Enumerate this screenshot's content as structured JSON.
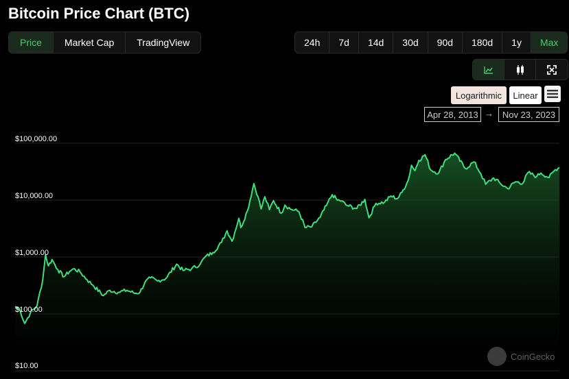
{
  "header": {
    "title": "Bitcoin Price Chart (BTC)"
  },
  "tabs": [
    {
      "label": "Price",
      "active": true
    },
    {
      "label": "Market Cap",
      "active": false
    },
    {
      "label": "TradingView",
      "active": false
    }
  ],
  "ranges": [
    {
      "label": "24h",
      "active": false
    },
    {
      "label": "7d",
      "active": false
    },
    {
      "label": "14d",
      "active": false
    },
    {
      "label": "30d",
      "active": false
    },
    {
      "label": "90d",
      "active": false
    },
    {
      "label": "180d",
      "active": false
    },
    {
      "label": "1y",
      "active": false
    },
    {
      "label": "Max",
      "active": true
    }
  ],
  "view_buttons": [
    {
      "icon": "line-chart-icon",
      "active": true
    },
    {
      "icon": "candlestick-icon",
      "active": false
    },
    {
      "icon": "fullscreen-icon",
      "active": false
    }
  ],
  "scale": {
    "log_label": "Logarithmic",
    "linear_label": "Linear",
    "selected": "Logarithmic"
  },
  "date_range": {
    "from": "Apr 28, 2013",
    "arrow": "→",
    "to": "Nov 23, 2023"
  },
  "watermark": {
    "text": "CoinGecko"
  },
  "colors": {
    "accent": "#4bcc6a",
    "line": "#3ee07e",
    "background": "#000000"
  },
  "chart_data": {
    "type": "area",
    "title": "Bitcoin Price Chart (BTC)",
    "y_scale": "log",
    "ylim": [
      10,
      100000
    ],
    "x_range": [
      "2013-04-28",
      "2023-11-23"
    ],
    "y_ticks": [
      {
        "value": 100000,
        "label": "$100,000.00"
      },
      {
        "value": 10000,
        "label": "$10,000.00"
      },
      {
        "value": 1000,
        "label": "$1,000.00"
      },
      {
        "value": 100,
        "label": "$100.00"
      },
      {
        "value": 10,
        "label": "$10.00"
      }
    ],
    "series": [
      {
        "x": [
          "2013-04-28",
          "2013-06-01",
          "2013-07-05",
          "2013-08-15",
          "2013-10-01",
          "2013-11-10",
          "2013-11-30",
          "2013-12-20",
          "2014-01-15",
          "2014-02-25",
          "2014-04-10",
          "2014-05-20",
          "2014-06-15",
          "2014-08-01",
          "2014-09-20",
          "2014-11-01",
          "2015-01-14",
          "2015-03-01",
          "2015-05-01",
          "2015-07-01",
          "2015-08-25",
          "2015-10-01",
          "2015-11-05",
          "2015-12-15",
          "2016-02-01",
          "2016-04-01",
          "2016-06-17",
          "2016-08-01",
          "2016-10-01",
          "2016-12-01",
          "2017-01-04",
          "2017-03-01",
          "2017-05-01",
          "2017-06-10",
          "2017-07-15",
          "2017-09-01",
          "2017-09-15",
          "2017-11-01",
          "2017-12-17",
          "2018-01-15",
          "2018-02-06",
          "2018-03-05",
          "2018-04-06",
          "2018-05-05",
          "2018-06-29",
          "2018-07-25",
          "2018-09-01",
          "2018-11-01",
          "2018-12-15",
          "2019-02-01",
          "2019-04-01",
          "2019-05-15",
          "2019-06-26",
          "2019-08-01",
          "2019-09-01",
          "2019-10-01",
          "2019-12-17",
          "2020-02-12",
          "2020-03-12",
          "2020-05-01",
          "2020-07-01",
          "2020-08-15",
          "2020-10-01",
          "2020-11-01",
          "2020-12-15",
          "2021-01-08",
          "2021-02-01",
          "2021-03-01",
          "2021-04-14",
          "2021-05-23",
          "2021-07-20",
          "2021-09-07",
          "2021-11-10",
          "2022-01-24",
          "2022-03-28",
          "2022-05-15",
          "2022-06-18",
          "2022-08-14",
          "2022-10-01",
          "2022-11-21",
          "2023-01-15",
          "2023-03-10",
          "2023-04-14",
          "2023-06-15",
          "2023-07-15",
          "2023-09-11",
          "2023-10-25",
          "2023-11-23"
        ],
        "y": [
          135,
          120,
          68,
          105,
          140,
          400,
          1100,
          700,
          900,
          600,
          450,
          560,
          620,
          550,
          400,
          320,
          210,
          260,
          240,
          260,
          230,
          240,
          360,
          430,
          380,
          420,
          750,
          580,
          620,
          750,
          1000,
          1200,
          1800,
          2900,
          1900,
          4800,
          3300,
          6500,
          19500,
          11500,
          7000,
          11500,
          6800,
          9800,
          5900,
          8200,
          7000,
          6300,
          3300,
          3400,
          5000,
          8000,
          12500,
          10000,
          9700,
          8200,
          7100,
          10300,
          4900,
          8800,
          9200,
          11800,
          10600,
          13700,
          22000,
          41000,
          33000,
          50000,
          63000,
          34000,
          30000,
          52000,
          67000,
          36000,
          47000,
          29000,
          19000,
          24500,
          19500,
          16000,
          21000,
          20000,
          30500,
          26000,
          30000,
          25000,
          34500,
          37500
        ]
      }
    ]
  }
}
